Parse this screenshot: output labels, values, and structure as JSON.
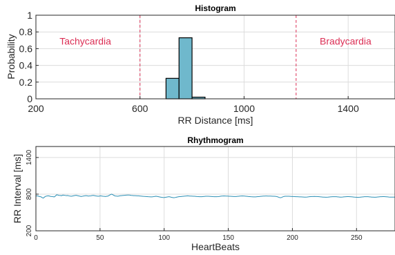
{
  "chart_data": [
    {
      "type": "bar",
      "title": "Histogram",
      "xlabel": "RR Distance [ms]",
      "ylabel": "Probability",
      "xlim": [
        200,
        1580
      ],
      "ylim": [
        0,
        1
      ],
      "xticks": [
        200,
        600,
        1000,
        1400
      ],
      "yticks": [
        0,
        0.2,
        0.4,
        0.6,
        0.8,
        1
      ],
      "ytick_labels": [
        "0",
        "0.2",
        "0.4",
        "0.6",
        "0.8",
        "1"
      ],
      "grid": true,
      "bar_color": "#6fb8cc",
      "bins": [
        {
          "x0": 700,
          "x1": 750,
          "value": 0.245
        },
        {
          "x0": 750,
          "x1": 800,
          "value": 0.73
        },
        {
          "x0": 800,
          "x1": 850,
          "value": 0.02
        }
      ],
      "thresholds": [
        {
          "x": 600,
          "label": "Tachycardia",
          "label_x": 390,
          "label_y": 0.69
        },
        {
          "x": 1200,
          "label": "Bradycardia",
          "label_x": 1390,
          "label_y": 0.69
        }
      ],
      "threshold_color": "#dc2f55"
    },
    {
      "type": "line",
      "title": "Rhythmogram",
      "xlabel": "HeartBeats",
      "ylabel": "RR Interval [ms]",
      "xlim": [
        0,
        280
      ],
      "ylim": [
        200,
        1580
      ],
      "xticks": [
        0,
        50,
        100,
        150,
        200,
        250
      ],
      "yticks": [
        200,
        800,
        1400
      ],
      "grid": true,
      "line_color": "#2a8fb5",
      "series": [
        {
          "values": [
            770,
            772,
            768,
            760,
            758,
            745,
            735,
            752,
            765,
            770,
            772,
            770,
            763,
            762,
            758,
            755,
            770,
            790,
            785,
            780,
            778,
            775,
            785,
            782,
            779,
            776,
            778,
            772,
            768,
            766,
            770,
            774,
            778,
            781,
            776,
            771,
            767,
            762,
            765,
            770,
            773,
            775,
            772,
            769,
            771,
            773,
            777,
            780,
            776,
            771,
            768,
            765,
            769,
            772,
            769,
            766,
            764,
            762,
            765,
            768,
            780,
            792,
            800,
            790,
            778,
            770,
            768,
            766,
            770,
            774,
            776,
            778,
            780,
            782,
            784,
            785,
            786,
            784,
            780,
            778,
            776,
            775,
            774,
            773,
            772,
            770,
            768,
            766,
            764,
            763,
            762,
            760,
            758,
            757,
            756,
            756,
            758,
            762,
            765,
            764,
            760,
            756,
            752,
            748,
            746,
            745,
            748,
            752,
            756,
            758,
            754,
            748,
            744,
            742,
            745,
            750,
            754,
            758,
            760,
            762,
            764,
            766,
            768,
            770,
            772,
            771,
            769,
            768,
            767,
            766,
            765,
            763,
            761,
            760,
            759,
            758,
            759,
            761,
            763,
            765,
            766,
            765,
            764,
            763,
            762,
            760,
            759,
            758,
            759,
            760,
            762,
            765,
            768,
            770,
            771,
            770,
            769,
            768,
            766,
            765,
            764,
            763,
            762,
            761,
            762,
            764,
            766,
            768,
            770,
            771,
            770,
            768,
            766,
            764,
            762,
            760,
            758,
            757,
            756,
            755,
            756,
            758,
            760,
            762,
            764,
            766,
            768,
            769,
            770,
            770,
            769,
            768,
            768,
            767,
            766,
            765,
            764,
            762,
            756,
            748,
            742,
            745,
            755,
            762,
            765,
            766,
            766,
            765,
            764,
            763,
            762,
            761,
            760,
            759,
            758,
            757,
            756,
            755,
            754,
            753,
            752,
            752,
            753,
            755,
            758,
            760,
            761,
            762,
            763,
            762,
            761,
            760,
            758,
            756,
            754,
            752,
            751,
            750,
            750,
            751,
            753,
            755,
            757,
            758,
            759,
            759,
            758,
            756,
            754,
            752,
            752,
            753,
            755,
            757,
            759,
            760,
            760,
            759,
            757,
            755,
            753,
            751,
            750,
            749,
            749,
            750,
            752,
            754,
            756,
            758,
            759,
            759,
            758,
            756,
            754,
            752,
            751,
            750,
            750,
            752,
            754,
            756,
            758,
            759,
            760,
            760,
            759,
            757,
            755,
            753,
            752,
            751,
            751,
            752,
            753
          ]
        }
      ]
    }
  ]
}
